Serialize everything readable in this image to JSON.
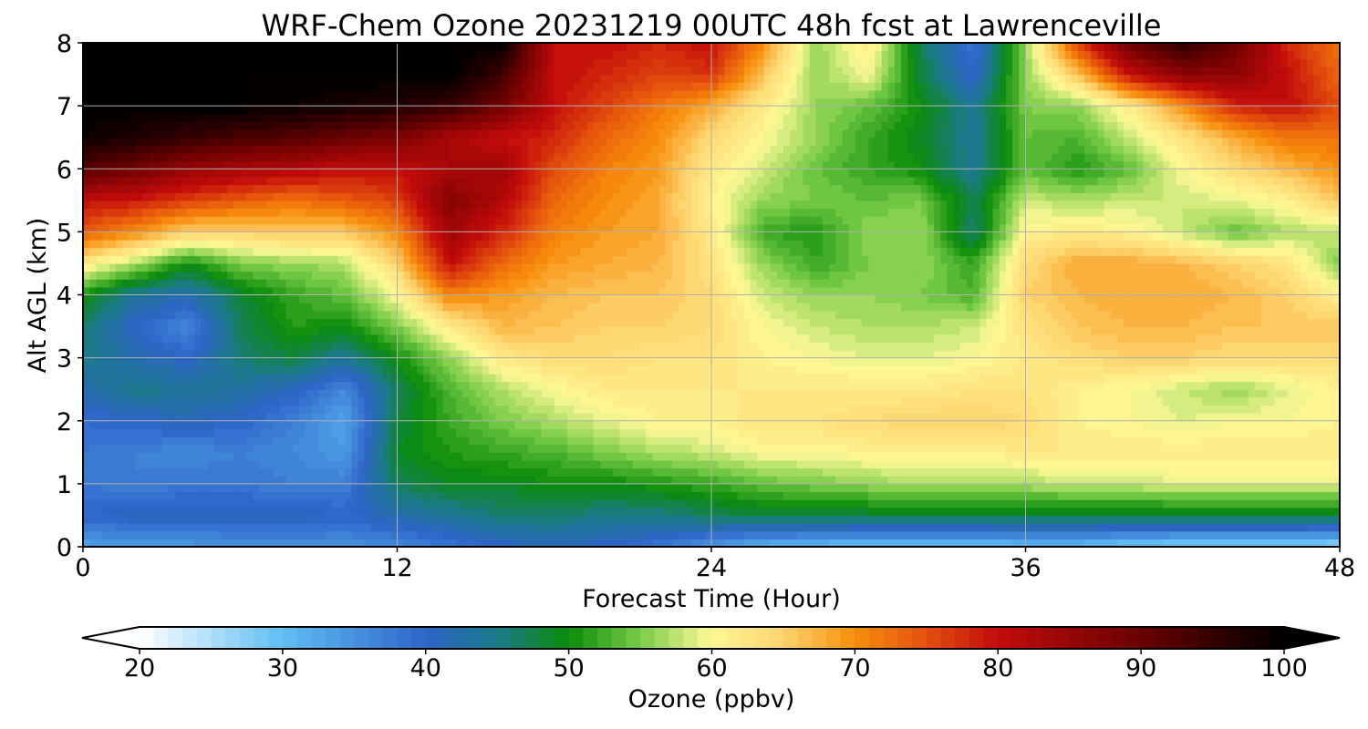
{
  "chart_data": {
    "type": "heatmap",
    "title": "WRF-Chem Ozone  20231219 00UTC 48h fcst at Lawrenceville",
    "xlabel": "Forecast Time (Hour)",
    "ylabel": "Alt AGL (km)",
    "xlim": [
      0,
      48
    ],
    "ylim": [
      0,
      8
    ],
    "x_ticks": [
      0,
      12,
      24,
      36,
      48
    ],
    "x_tick_labels": [
      "0",
      "12",
      "24",
      "36",
      "48"
    ],
    "y_ticks": [
      0,
      1,
      2,
      3,
      4,
      5,
      6,
      7,
      8
    ],
    "y_tick_labels": [
      "0",
      "1",
      "2",
      "3",
      "4",
      "5",
      "6",
      "7",
      "8"
    ],
    "grid": true,
    "x": [
      0,
      2,
      4,
      6,
      8,
      10,
      12,
      14,
      16,
      18,
      20,
      22,
      24,
      26,
      28,
      30,
      32,
      34,
      36,
      38,
      40,
      42,
      44,
      46,
      48
    ],
    "y": [
      0,
      0.5,
      1,
      1.5,
      2,
      2.5,
      3,
      3.5,
      4,
      4.5,
      5,
      5.5,
      6,
      6.5,
      7,
      7.5,
      8
    ],
    "values": [
      [
        33,
        34,
        34,
        35,
        35,
        35,
        36,
        38,
        40,
        41,
        40,
        38,
        34,
        31,
        30,
        29,
        29,
        29,
        30,
        30,
        28,
        27,
        27,
        27,
        26
      ],
      [
        40,
        41,
        41,
        41,
        41,
        40,
        42,
        44,
        46,
        46,
        45,
        45,
        47,
        48,
        48,
        48,
        48,
        48,
        48,
        48,
        48,
        48,
        48,
        48,
        48
      ],
      [
        38,
        37,
        38,
        38,
        37,
        37,
        47,
        49,
        49,
        50,
        50,
        51,
        52,
        54,
        55,
        56,
        57,
        57,
        57,
        58,
        58,
        59,
        59,
        59,
        59
      ],
      [
        38,
        37,
        36,
        37,
        36,
        34,
        49,
        51,
        52,
        53,
        55,
        57,
        58,
        60,
        60,
        61,
        61,
        61,
        62,
        62,
        62,
        62,
        62,
        62,
        62
      ],
      [
        39,
        40,
        41,
        40,
        37,
        33,
        48,
        52,
        55,
        57,
        59,
        61,
        61,
        63,
        63,
        64,
        65,
        65,
        64,
        61,
        60,
        59,
        60,
        60,
        61
      ],
      [
        42,
        45,
        44,
        43,
        41,
        36,
        47,
        53,
        57,
        60,
        62,
        62,
        62,
        62,
        62,
        62,
        62,
        63,
        63,
        61,
        60,
        58,
        56,
        59,
        61
      ],
      [
        45,
        42,
        40,
        46,
        48,
        44,
        50,
        56,
        62,
        64,
        64,
        63,
        63,
        61,
        60,
        59,
        59,
        60,
        62,
        64,
        65,
        65,
        64,
        64,
        64
      ],
      [
        46,
        40,
        36,
        47,
        51,
        50,
        55,
        62,
        67,
        66,
        65,
        65,
        64,
        60,
        58,
        57,
        57,
        58,
        63,
        66,
        67,
        67,
        66,
        66,
        66
      ],
      [
        50,
        44,
        42,
        48,
        52,
        54,
        60,
        71,
        69,
        67,
        66,
        66,
        64,
        58,
        56,
        56,
        55,
        53,
        65,
        67,
        68,
        68,
        67,
        65,
        61
      ],
      [
        62,
        57,
        50,
        55,
        56,
        57,
        65,
        80,
        73,
        69,
        68,
        67,
        63,
        56,
        52,
        55,
        56,
        52,
        64,
        68,
        68,
        67,
        65,
        63,
        55
      ],
      [
        74,
        70,
        65,
        65,
        66,
        66,
        70,
        84,
        78,
        71,
        69,
        68,
        62,
        52,
        51,
        56,
        56,
        46,
        61,
        62,
        61,
        58,
        54,
        57,
        58
      ],
      [
        80,
        79,
        76,
        74,
        72,
        74,
        76,
        87,
        82,
        73,
        70,
        68,
        61,
        56,
        55,
        54,
        55,
        47,
        58,
        57,
        58,
        58,
        59,
        61,
        66
      ],
      [
        92,
        89,
        85,
        83,
        82,
        80,
        80,
        83,
        84,
        75,
        71,
        69,
        62,
        58,
        54,
        52,
        50,
        44,
        54,
        51,
        54,
        60,
        64,
        67,
        70
      ],
      [
        99,
        97,
        95,
        93,
        92,
        90,
        88,
        83,
        80,
        78,
        73,
        70,
        64,
        60,
        56,
        52,
        49,
        44,
        54,
        53,
        58,
        63,
        68,
        72,
        72
      ],
      [
        100,
        100,
        100,
        100,
        99,
        98,
        97,
        95,
        89,
        80,
        76,
        72,
        68,
        62,
        56,
        54,
        50,
        44,
        55,
        56,
        62,
        70,
        78,
        80,
        75
      ],
      [
        100,
        100,
        100,
        100,
        100,
        100,
        100,
        100,
        94,
        80,
        78,
        76,
        77,
        66,
        56,
        60,
        48,
        40,
        56,
        66,
        80,
        86,
        86,
        80,
        73
      ],
      [
        100,
        100,
        100,
        100,
        100,
        100,
        100,
        100,
        100,
        80,
        80,
        78,
        80,
        70,
        56,
        62,
        47,
        38,
        56,
        76,
        90,
        96,
        90,
        78,
        72
      ]
    ],
    "colorbar": {
      "label": "Ozone  (ppbv)",
      "vmin": 20,
      "vmax": 100,
      "step": 1,
      "extend": "both",
      "ticks": [
        20,
        30,
        40,
        50,
        60,
        70,
        80,
        90,
        100
      ],
      "tick_labels": [
        "20",
        "30",
        "40",
        "50",
        "60",
        "70",
        "80",
        "90",
        "100"
      ],
      "colormap_stops": [
        [
          20,
          "#ffffff"
        ],
        [
          30,
          "#5fbef4"
        ],
        [
          40,
          "#2f64c8"
        ],
        [
          45,
          "#1b7a8a"
        ],
        [
          50,
          "#0a8c0a"
        ],
        [
          55,
          "#7acc47"
        ],
        [
          60,
          "#fffa96"
        ],
        [
          65,
          "#fdd36d"
        ],
        [
          70,
          "#f88e0c"
        ],
        [
          75,
          "#e4500c"
        ],
        [
          80,
          "#c30b0b"
        ],
        [
          90,
          "#6a0000"
        ],
        [
          100,
          "#000000"
        ]
      ]
    }
  }
}
